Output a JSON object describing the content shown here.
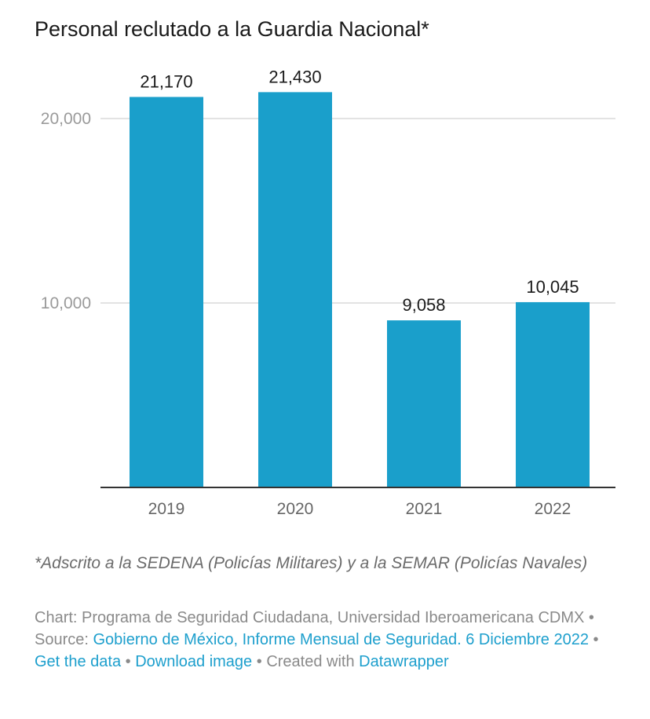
{
  "title": "Personal reclutado a la Guardia Nacional*",
  "chart_data": {
    "type": "bar",
    "categories": [
      "2019",
      "2020",
      "2021",
      "2022"
    ],
    "values": [
      21170,
      21430,
      9058,
      10045
    ],
    "value_labels": [
      "21,170",
      "21,430",
      "9,058",
      "10,045"
    ],
    "ylim": [
      0,
      24000
    ],
    "yticks": [
      10000,
      20000
    ],
    "ytick_labels": [
      "10,000",
      "20,000"
    ],
    "grid": true,
    "bar_color": "#1a9fcb",
    "xlabel": "",
    "ylabel": ""
  },
  "footnote": "*Adscrito a la SEDENA (Policías Militares) y a la SEMAR (Policías Navales)",
  "credits": {
    "chart_prefix": "Chart: Programa de Seguridad Ciudadana, Universidad Iberoamericana CDMX",
    "sep": " • ",
    "source_prefix": "Source: ",
    "source_link": "Gobierno de México, Informe Mensual de Seguridad. 6 Diciembre 2022",
    "get_data": "Get the data",
    "download": "Download image",
    "created_with": "Created with ",
    "datawrapper": "Datawrapper"
  }
}
